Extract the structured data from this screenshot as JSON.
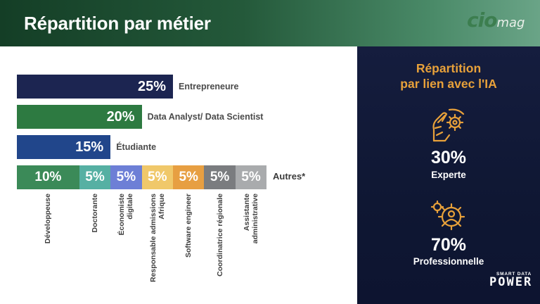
{
  "header": {
    "title": "Répartition par métier",
    "logo": {
      "part1": "cio",
      "part2": "mag"
    }
  },
  "chart_data": {
    "type": "bar",
    "main": [
      {
        "label": "Entrepreneure",
        "value": 25,
        "display": "25%",
        "color": "#1c2551"
      },
      {
        "label": "Data Analyst/ Data Scientist",
        "value": 20,
        "display": "20%",
        "color": "#2d7a41"
      },
      {
        "label": "Étudiante",
        "value": 15,
        "display": "15%",
        "color": "#21468b"
      }
    ],
    "stacked": {
      "label": "Autres*",
      "segments": [
        {
          "label": "Développeuse",
          "value": 10,
          "display": "10%",
          "color": "#3b8a58"
        },
        {
          "label": "Doctorante",
          "value": 5,
          "display": "5%",
          "color": "#56b0a3"
        },
        {
          "label": "Économiste digitale",
          "value": 5,
          "display": "5%",
          "color": "#6d7fd6"
        },
        {
          "label": "Responsable admissions Afrique",
          "value": 5,
          "display": "5%",
          "color": "#f0c86a"
        },
        {
          "label": "Software engineer",
          "value": 5,
          "display": "5%",
          "color": "#e79f42"
        },
        {
          "label": "Coordinatrice régionale",
          "value": 5,
          "display": "5%",
          "color": "#7a7c7f"
        },
        {
          "label": "Assistante administrative",
          "value": 5,
          "display": "5%",
          "color": "#a9abad"
        }
      ]
    }
  },
  "panel": {
    "title_line1": "Répartition",
    "title_line2": "par lien avec l'IA",
    "accent_color": "#e8a13a",
    "stats": [
      {
        "value": "30%",
        "label": "Experte",
        "icon": "hand-gear-icon"
      },
      {
        "value": "70%",
        "label": "Professionnelle",
        "icon": "gear-person-icon"
      }
    ],
    "brand": {
      "small": "SMART DATA",
      "big": "POWER"
    }
  }
}
